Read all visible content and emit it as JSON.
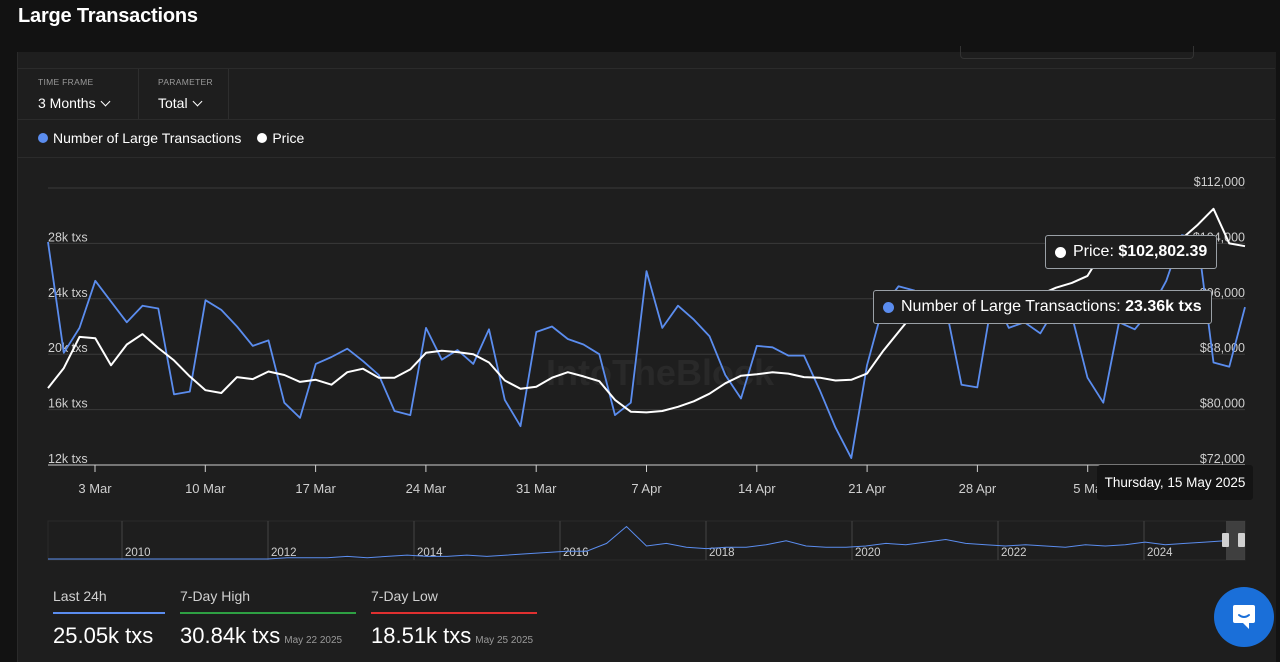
{
  "header": {
    "title": "Large Transactions"
  },
  "controls": {
    "timeframe": {
      "label": "TIME FRAME",
      "value": "3 Months"
    },
    "parameter": {
      "label": "PARAMETER",
      "value": "Total"
    }
  },
  "legend": [
    {
      "label": "Number of Large Transactions",
      "color": "#5b8def"
    },
    {
      "label": "Price",
      "color": "#ffffff"
    }
  ],
  "tooltip": {
    "price_label": "Price: ",
    "price_value": "$102,802.39",
    "tx_label": "Number of Large Transactions: ",
    "tx_value": "23.36k txs",
    "date": "Thursday, 15 May 2025"
  },
  "watermark": "IntoTheBlock",
  "chart_data": {
    "type": "line",
    "x_labels": [
      "3 Mar",
      "10 Mar",
      "17 Mar",
      "24 Mar",
      "31 Mar",
      "7 Apr",
      "14 Apr",
      "21 Apr",
      "28 Apr",
      "5 Ma"
    ],
    "left_axis": {
      "ticks": [
        "12k txs",
        "16k txs",
        "20k txs",
        "24k txs",
        "28k txs"
      ],
      "tick_values": [
        12000,
        16000,
        20000,
        24000,
        28000
      ]
    },
    "right_axis": {
      "ticks": [
        "$72,000",
        "$80,000",
        "$88,000",
        "$96,000",
        "$104,000",
        "$112,000"
      ],
      "tick_values": [
        72000,
        80000,
        88000,
        96000,
        104000,
        112000
      ]
    },
    "series": [
      {
        "name": "Number of Large Transactions",
        "color": "#5b8def",
        "values": [
          28100,
          20100,
          21900,
          25300,
          23800,
          22300,
          23500,
          23300,
          17100,
          17300,
          23900,
          23200,
          22000,
          20600,
          21000,
          16500,
          15400,
          19300,
          19800,
          20400,
          19500,
          18500,
          15900,
          15600,
          21900,
          19600,
          20300,
          19300,
          21800,
          16700,
          14800,
          21600,
          22000,
          21100,
          20700,
          20000,
          15600,
          16500,
          26000,
          21900,
          23500,
          22500,
          21300,
          18500,
          16800,
          20600,
          20500,
          19900,
          19900,
          17400,
          14700,
          12500,
          19200,
          23400,
          24900,
          24600,
          22300,
          23400,
          17800,
          17600,
          24300,
          21900,
          22300,
          21500,
          23400,
          22800,
          18300,
          16500,
          22300,
          21800,
          23200,
          25300,
          28600,
          28300,
          19400,
          19100,
          23400
        ]
      },
      {
        "name": "Price",
        "color": "#ffffff",
        "values": [
          83100,
          86000,
          90500,
          90300,
          86400,
          89400,
          90900,
          88900,
          87100,
          84800,
          82800,
          82400,
          84700,
          84400,
          85500,
          85000,
          84000,
          84300,
          83600,
          85400,
          85900,
          84600,
          84600,
          85800,
          88200,
          88500,
          88300,
          88000,
          86800,
          84200,
          83000,
          83300,
          84600,
          85400,
          84800,
          84100,
          81400,
          79700,
          79600,
          79800,
          80400,
          81200,
          82300,
          83800,
          84900,
          85100,
          85400,
          85200,
          84700,
          84600,
          84200,
          84300,
          85200,
          88400,
          91200,
          94000,
          95300,
          94800,
          94300,
          94800,
          95400,
          94400,
          94700,
          96600,
          97600,
          98300,
          99300,
          103000,
          104200,
          103500,
          102800,
          103400,
          104700,
          106700,
          109000,
          104000,
          103600
        ]
      }
    ],
    "y_left_range": [
      12000,
      32000
    ],
    "y_right_range": [
      72000,
      112000
    ]
  },
  "navigator": {
    "years": [
      "2010",
      "2012",
      "2014",
      "2016",
      "2018",
      "2020",
      "2022",
      "2024"
    ],
    "series": [
      0,
      0,
      0,
      0,
      0,
      0,
      0,
      0,
      0,
      0,
      0,
      0,
      1,
      1,
      1,
      2,
      1,
      2,
      3,
      2,
      2,
      3,
      2,
      3,
      4,
      5,
      6,
      6,
      12,
      25,
      10,
      12,
      9,
      8,
      9,
      9,
      11,
      14,
      10,
      9,
      9,
      10,
      12,
      11,
      13,
      15,
      12,
      11,
      10,
      11,
      10,
      9,
      11,
      10,
      11,
      13,
      11,
      12,
      13,
      14
    ]
  },
  "stats": [
    {
      "label": "Last 24h",
      "value": "25.05k txs",
      "date": "",
      "color": "#5b8def"
    },
    {
      "label": "7-Day High",
      "value": "30.84k txs",
      "date": "May 22 2025",
      "color": "#2ea043"
    },
    {
      "label": "7-Day Low",
      "value": "18.51k txs",
      "date": "May 25 2025",
      "color": "#e03030"
    }
  ]
}
